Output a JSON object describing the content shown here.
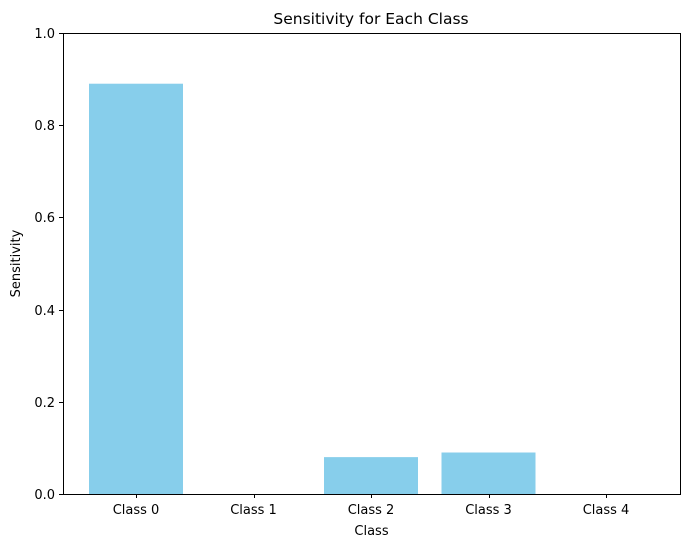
{
  "chart_data": {
    "type": "bar",
    "title": "Sensitivity for Each Class",
    "xlabel": "Class",
    "ylabel": "Sensitivity",
    "categories": [
      "Class 0",
      "Class 1",
      "Class 2",
      "Class 3",
      "Class 4"
    ],
    "values": [
      0.89,
      0.0,
      0.08,
      0.09,
      0.0
    ],
    "ylim": [
      0,
      1
    ],
    "yticks": [
      0.0,
      0.2,
      0.4,
      0.6,
      0.8,
      1.0
    ],
    "ytick_labels": [
      "0.0",
      "0.2",
      "0.4",
      "0.6",
      "0.8",
      "1.0"
    ],
    "bar_color": "#87ceeb",
    "grid": false,
    "legend": "none"
  }
}
